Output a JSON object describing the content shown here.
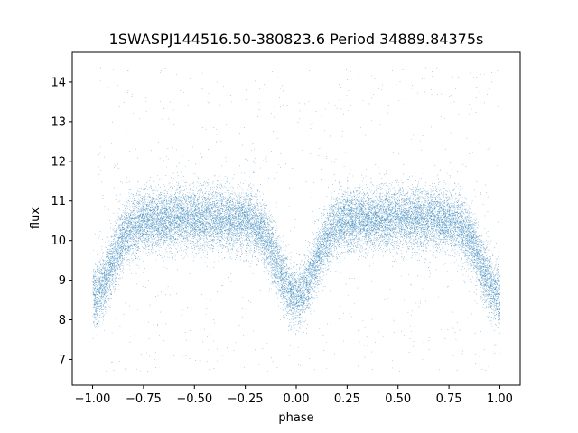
{
  "chart_data": {
    "type": "scatter",
    "title": "1SWASPJ144516.50-380823.6 Period 34889.84375s",
    "xlabel": "phase",
    "ylabel": "flux",
    "xlim": [
      -1.1,
      1.1
    ],
    "ylim": [
      6.35,
      14.75
    ],
    "xticks": [
      -1.0,
      -0.75,
      -0.5,
      -0.25,
      0.0,
      0.25,
      0.5,
      0.75,
      1.0
    ],
    "xtick_labels": [
      "−1.00",
      "−0.75",
      "−0.50",
      "−0.25",
      "0.00",
      "0.25",
      "0.50",
      "0.75",
      "1.00"
    ],
    "yticks": [
      7,
      8,
      9,
      10,
      11,
      12,
      13,
      14
    ],
    "ytick_labels": [
      "7",
      "8",
      "9",
      "10",
      "11",
      "12",
      "13",
      "14"
    ],
    "grid": false,
    "marker_color": "#1f77b4",
    "series": [
      {
        "phase_range": [
          -1.0,
          1.0
        ],
        "baseline_flux": 10.55,
        "scatter_sd": 0.38,
        "dips": [
          {
            "phase": -1.0,
            "depth": 1.95,
            "width": 0.09
          },
          {
            "phase": 0.0,
            "depth": 1.95,
            "width": 0.09
          },
          {
            "phase": 1.0,
            "depth": 1.95,
            "width": 0.09
          }
        ],
        "outlier_range": [
          6.7,
          14.4
        ],
        "count": 22000
      }
    ]
  }
}
